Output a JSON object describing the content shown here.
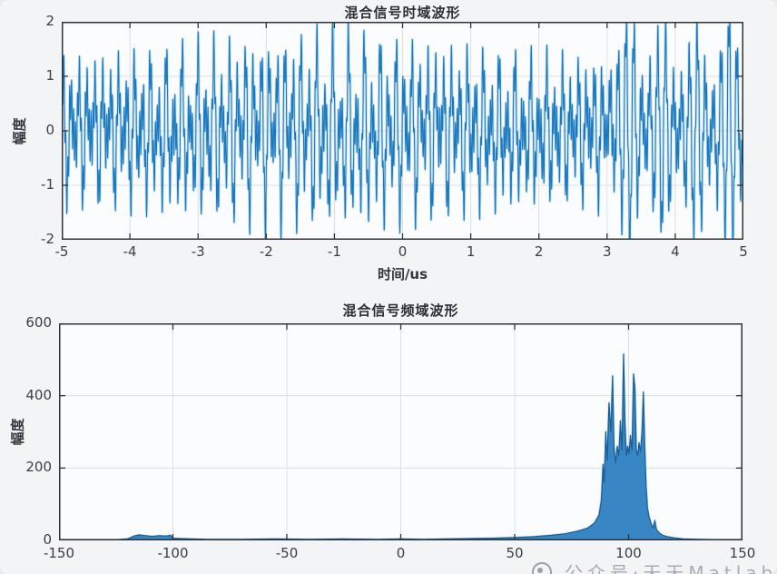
{
  "page": {
    "background": "#f2f4f5"
  },
  "watermark": {
    "logo": "circle-logo",
    "text": "公众号·天天Matlab"
  },
  "chart_data": [
    {
      "type": "line",
      "title": "混合信号时域波形",
      "xlabel": "时间/us",
      "ylabel": "幅度",
      "xlim": [
        -5,
        5
      ],
      "ylim": [
        -2,
        2
      ],
      "xticks": [
        -5,
        -4,
        -3,
        -2,
        -1,
        0,
        1,
        2,
        3,
        4,
        5
      ],
      "yticks": [
        -2,
        -1,
        0,
        1,
        2
      ],
      "grid": true,
      "line_color": "#1b7abf",
      "halo_color": "#a3cde9",
      "signal_model": {
        "description": "dense multi-tone beat waveform filling ±2: carrier with |cos| beat envelope (~40 spindle bumps, period 0.25us) plus constant core tone ±0.45; from t≈3.1 to 5 four wide pulse envelope lobes",
        "carrier_freq": 8.6,
        "carrier_phase": 0.4,
        "core_freq": 35,
        "core_amp": 0.45,
        "core_phase": 1.0,
        "beat_env_freq": 2.05,
        "beat_env_phase": 0.8,
        "beat_amp": 1.62,
        "beat_slow_mod_freq": 0.13,
        "pulse_start": 3.07,
        "pulse_width": 0.49,
        "pulse_amp": 1.78,
        "clip": 1.98,
        "samples": 6000
      }
    },
    {
      "type": "area",
      "title": "混合信号频域波形",
      "xlabel": "",
      "ylabel": "幅度",
      "xlim": [
        -150,
        150
      ],
      "ylim": [
        0,
        600
      ],
      "xticks": [
        -150,
        -100,
        -50,
        0,
        50,
        100,
        150
      ],
      "yticks": [
        0,
        200,
        400,
        600
      ],
      "grid": true,
      "fill_color": "#2e80c1",
      "stroke_color": "#1a5e94",
      "halo_color": "#93c5e6",
      "points": [
        [
          -150,
          2
        ],
        [
          -125,
          2
        ],
        [
          -120,
          4
        ],
        [
          -117,
          12
        ],
        [
          -115,
          15
        ],
        [
          -112,
          13
        ],
        [
          -109,
          11
        ],
        [
          -106,
          13
        ],
        [
          -103,
          12
        ],
        [
          -101,
          14
        ],
        [
          -100,
          6
        ],
        [
          -97,
          5
        ],
        [
          -92,
          4
        ],
        [
          -85,
          3
        ],
        [
          -70,
          3
        ],
        [
          -55,
          4
        ],
        [
          -40,
          3
        ],
        [
          -25,
          4
        ],
        [
          -10,
          3
        ],
        [
          0,
          4
        ],
        [
          10,
          3
        ],
        [
          20,
          4
        ],
        [
          30,
          5
        ],
        [
          40,
          6
        ],
        [
          50,
          8
        ],
        [
          58,
          10
        ],
        [
          66,
          14
        ],
        [
          72,
          18
        ],
        [
          78,
          26
        ],
        [
          82,
          34
        ],
        [
          85,
          48
        ],
        [
          87,
          70
        ],
        [
          88,
          110
        ],
        [
          88.8,
          210
        ],
        [
          89.3,
          160
        ],
        [
          90,
          300
        ],
        [
          90.6,
          220
        ],
        [
          91.4,
          380
        ],
        [
          92.2,
          300
        ],
        [
          93,
          455
        ],
        [
          93.6,
          260
        ],
        [
          94.3,
          215
        ],
        [
          95,
          260
        ],
        [
          95.7,
          235
        ],
        [
          96.4,
          330
        ],
        [
          97.1,
          250
        ],
        [
          97.8,
          515
        ],
        [
          98.4,
          330
        ],
        [
          99,
          235
        ],
        [
          99.6,
          260
        ],
        [
          100.2,
          240
        ],
        [
          100.8,
          290
        ],
        [
          101.5,
          250
        ],
        [
          102.2,
          460
        ],
        [
          102.8,
          420
        ],
        [
          103.4,
          250
        ],
        [
          104,
          235
        ],
        [
          104.6,
          270
        ],
        [
          105.2,
          245
        ],
        [
          105.9,
          300
        ],
        [
          106.5,
          410
        ],
        [
          107.1,
          260
        ],
        [
          107.7,
          150
        ],
        [
          108.3,
          90
        ],
        [
          109,
          65
        ],
        [
          110,
          45
        ],
        [
          110.8,
          35
        ],
        [
          111.5,
          55
        ],
        [
          112.2,
          30
        ],
        [
          113.5,
          20
        ],
        [
          115,
          14
        ],
        [
          117,
          10
        ],
        [
          120,
          7
        ],
        [
          124,
          4
        ],
        [
          130,
          3
        ],
        [
          140,
          2
        ],
        [
          150,
          2
        ]
      ]
    }
  ]
}
